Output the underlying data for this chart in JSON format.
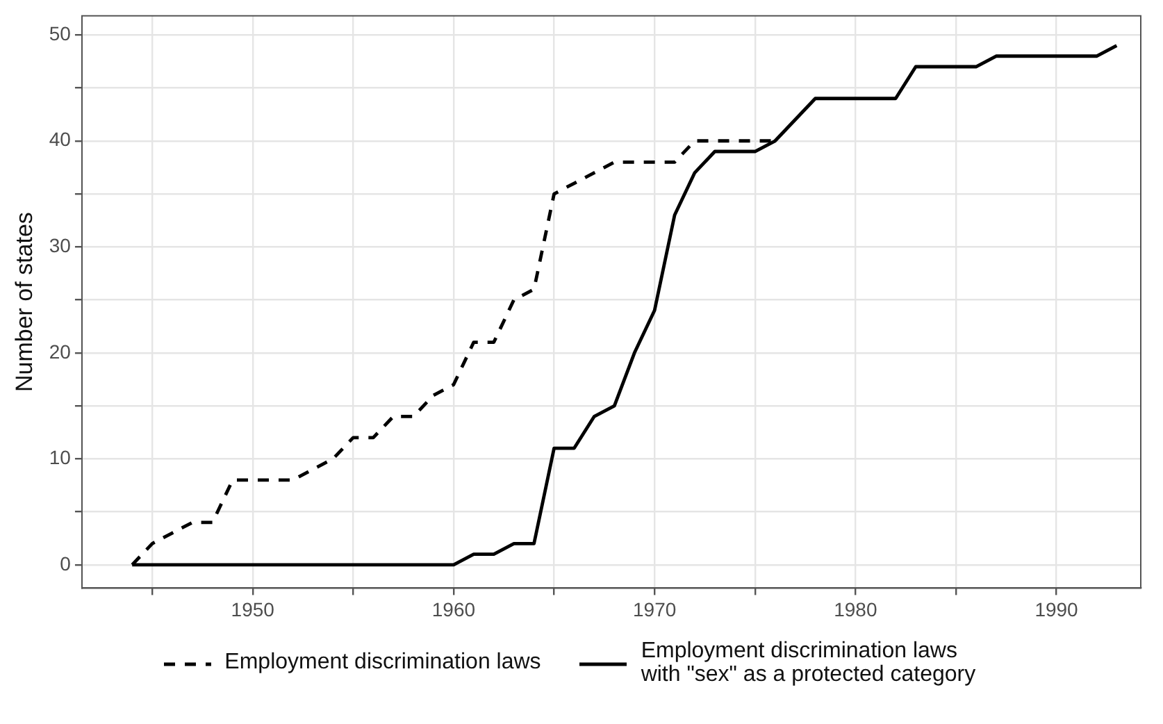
{
  "chart_data": {
    "type": "line",
    "ylabel": "Number of states",
    "x": [
      1944,
      1945,
      1946,
      1947,
      1948,
      1949,
      1950,
      1951,
      1952,
      1953,
      1954,
      1955,
      1956,
      1957,
      1958,
      1959,
      1960,
      1961,
      1962,
      1963,
      1964,
      1965,
      1966,
      1967,
      1968,
      1969,
      1970,
      1971,
      1972,
      1973,
      1974,
      1975,
      1976,
      1977,
      1978,
      1979,
      1980,
      1981,
      1982,
      1983,
      1984,
      1985,
      1986,
      1987,
      1988,
      1989,
      1990,
      1991,
      1992,
      1993
    ],
    "series": [
      {
        "name": "Employment discrimination laws",
        "color": "#000000",
        "line_style": "dashed",
        "values": [
          0,
          2,
          3,
          4,
          4,
          8,
          8,
          8,
          8,
          9,
          10,
          12,
          12,
          14,
          14,
          16,
          17,
          21,
          21,
          25,
          26,
          35,
          36,
          37,
          38,
          38,
          38,
          38,
          40,
          40,
          40,
          40,
          40,
          null,
          null,
          null,
          null,
          null,
          null,
          null,
          null,
          null,
          null,
          null,
          null,
          null,
          null,
          null,
          null,
          null
        ]
      },
      {
        "name": "Employment discrimination laws with \"sex\" as a protected category",
        "color": "#000000",
        "line_style": "solid",
        "values": [
          0,
          0,
          0,
          0,
          0,
          0,
          0,
          0,
          0,
          0,
          0,
          0,
          0,
          0,
          0,
          0,
          0,
          1,
          1,
          2,
          2,
          11,
          11,
          14,
          15,
          20,
          24,
          33,
          37,
          39,
          39,
          39,
          40,
          42,
          44,
          44,
          44,
          44,
          44,
          47,
          47,
          47,
          47,
          48,
          48,
          48,
          48,
          48,
          48,
          49
        ]
      }
    ],
    "xlim": [
      1941.5,
      1994.2
    ],
    "xticks": [
      {
        "value": 1945,
        "label": null
      },
      1950,
      {
        "value": 1955,
        "label": null
      },
      1960,
      {
        "value": 1965,
        "label": null
      },
      1970,
      {
        "value": 1975,
        "label": null
      },
      1980,
      {
        "value": 1985,
        "label": null
      },
      1990
    ],
    "ylim": [
      -2.2,
      51.8
    ],
    "yticks": [
      0,
      {
        "value": 5,
        "label": null
      },
      10,
      {
        "value": 15,
        "label": null
      },
      20,
      {
        "value": 25,
        "label": null
      },
      30,
      {
        "value": 35,
        "label": null
      },
      40,
      {
        "value": 45,
        "label": null
      },
      50
    ],
    "grid": true,
    "legend": "bottom",
    "marker": "none"
  }
}
